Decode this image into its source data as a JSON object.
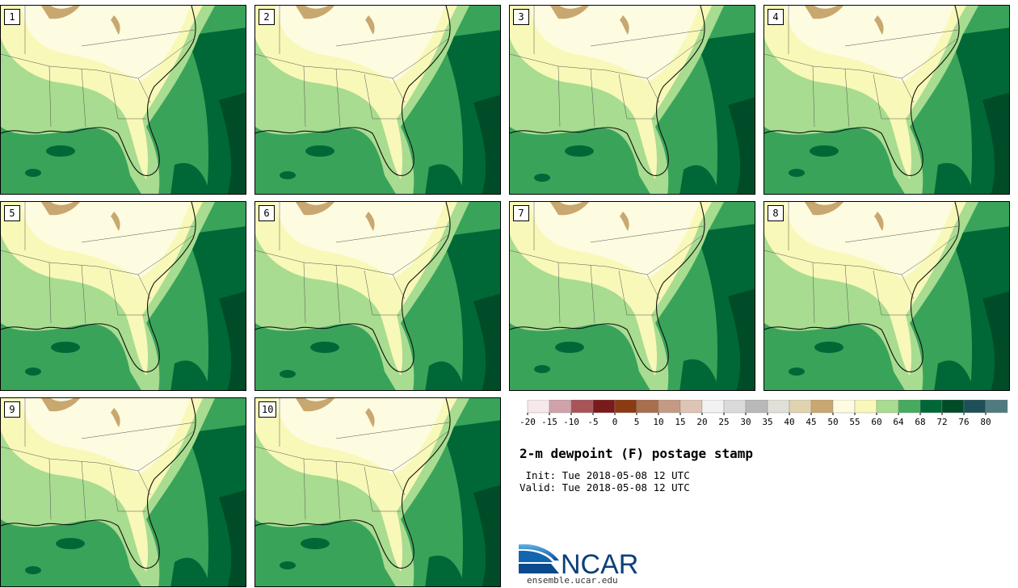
{
  "panels": [
    {
      "label": "1",
      "variant": 0
    },
    {
      "label": "2",
      "variant": 1
    },
    {
      "label": "3",
      "variant": 2
    },
    {
      "label": "4",
      "variant": 3
    },
    {
      "label": "5",
      "variant": 4
    },
    {
      "label": "6",
      "variant": 5
    },
    {
      "label": "7",
      "variant": 6
    },
    {
      "label": "8",
      "variant": 7
    },
    {
      "label": "9",
      "variant": 8
    },
    {
      "label": "10",
      "variant": 9
    }
  ],
  "title": "2-m dewpoint (F) postage stamp",
  "init": " Init: Tue 2018-05-08 12 UTC",
  "valid": "Valid: Tue 2018-05-08 12 UTC",
  "logo": {
    "text": "NCAR",
    "url": "ensemble.ucar.edu"
  },
  "colorbar": {
    "tick_labels": [
      "-20",
      "-15",
      "-10",
      "-5",
      "0",
      "5",
      "10",
      "15",
      "20",
      "25",
      "30",
      "35",
      "40",
      "45",
      "50",
      "55",
      "60",
      "64",
      "68",
      "72",
      "76",
      "80"
    ],
    "colors": [
      "#f7e8ec",
      "#d1a2ab",
      "#a85458",
      "#7a1a1a",
      "#8a3c10",
      "#a86e4e",
      "#c49a84",
      "#ddc4b4",
      "#f2f2f2",
      "#dadada",
      "#b9b9b9",
      "#e0e0d8",
      "#e0d4b0",
      "#c8a870",
      "#fdfbe0",
      "#f8f8b8",
      "#a8dc90",
      "#45ab5d",
      "#006837",
      "#004c28",
      "#1f5059",
      "#4f7b80"
    ]
  }
}
